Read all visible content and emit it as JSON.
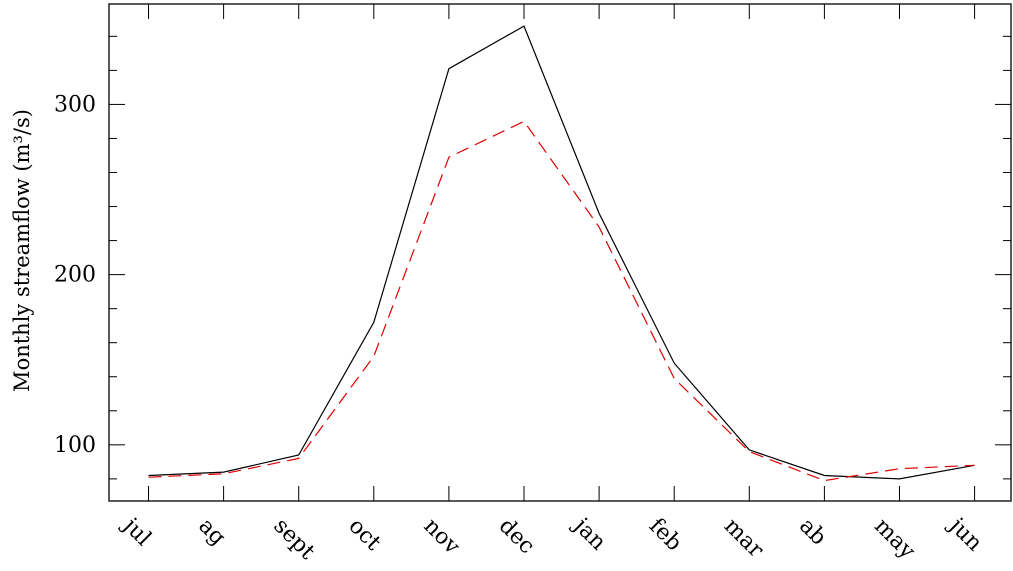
{
  "chart_data": {
    "type": "line",
    "categories": [
      "jul",
      "ag",
      "sept",
      "oct",
      "nov",
      "dec",
      "jan",
      "feb",
      "mar",
      "ab",
      "may",
      "jun"
    ],
    "series": [
      {
        "color": "#000000",
        "dash": "solid",
        "values": [
          82,
          84,
          94,
          172,
          321,
          346,
          236,
          148,
          97,
          82,
          80,
          88
        ]
      },
      {
        "color": "#e00000",
        "dash": "dashed",
        "values": [
          81,
          83,
          92,
          152,
          269,
          290,
          228,
          139,
          96,
          79,
          86,
          88
        ]
      }
    ],
    "title": "",
    "xlabel": "",
    "ylabel": "Monthly streamflow (m³/s)",
    "ylim": [
      67,
      359
    ],
    "yticks": [
      100,
      200,
      300
    ],
    "yminor_step": 20,
    "grid": false,
    "legend": "none"
  }
}
